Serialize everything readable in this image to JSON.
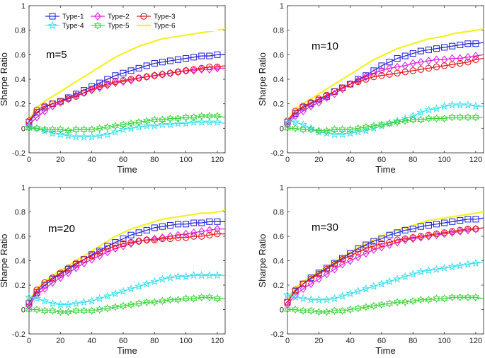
{
  "chart_data": [
    {
      "type": "line",
      "annotation": "m=5",
      "xlabel": "Time",
      "ylabel": "Sharpe Ratio",
      "xlim": [
        0,
        125
      ],
      "ylim": [
        -0.2,
        1
      ],
      "xticks": [
        "0",
        "20",
        "40",
        "60",
        "80",
        "100",
        "120"
      ],
      "yticks": [
        "-0.2",
        "0",
        "0.2",
        "0.4",
        "0.6",
        "0.8",
        "1"
      ],
      "x": [
        0,
        5,
        10,
        15,
        20,
        25,
        30,
        35,
        40,
        45,
        50,
        55,
        60,
        65,
        70,
        75,
        80,
        85,
        90,
        95,
        100,
        105,
        110,
        115,
        120,
        125
      ],
      "series": [
        {
          "name": "Type-1",
          "color": "#2b2bd6",
          "marker": "square",
          "values": [
            0.05,
            0.13,
            0.17,
            0.2,
            0.22,
            0.25,
            0.28,
            0.31,
            0.34,
            0.37,
            0.4,
            0.43,
            0.45,
            0.47,
            0.49,
            0.51,
            0.53,
            0.54,
            0.55,
            0.56,
            0.57,
            0.58,
            0.59,
            0.59,
            0.6,
            0.6
          ]
        },
        {
          "name": "Type-2",
          "color": "#e022e0",
          "marker": "diamond",
          "values": [
            0.03,
            0.09,
            0.14,
            0.18,
            0.21,
            0.24,
            0.27,
            0.29,
            0.31,
            0.33,
            0.35,
            0.37,
            0.38,
            0.39,
            0.41,
            0.42,
            0.43,
            0.44,
            0.45,
            0.46,
            0.47,
            0.47,
            0.48,
            0.48,
            0.49,
            0.49
          ]
        },
        {
          "name": "Type-3",
          "color": "#e01a1a",
          "marker": "circle",
          "values": [
            0.06,
            0.15,
            0.18,
            0.2,
            0.22,
            0.24,
            0.26,
            0.29,
            0.32,
            0.34,
            0.36,
            0.38,
            0.39,
            0.4,
            0.41,
            0.42,
            0.43,
            0.44,
            0.45,
            0.46,
            0.47,
            0.48,
            0.49,
            0.5,
            0.5,
            0.51
          ]
        },
        {
          "name": "Type-4",
          "color": "#3ae0ec",
          "marker": "star",
          "values": [
            0.01,
            0.0,
            -0.02,
            -0.04,
            -0.05,
            -0.06,
            -0.07,
            -0.07,
            -0.07,
            -0.06,
            -0.05,
            -0.03,
            -0.01,
            0.0,
            0.01,
            0.02,
            0.02,
            0.03,
            0.03,
            0.04,
            0.04,
            0.05,
            0.05,
            0.05,
            0.05,
            0.04
          ]
        },
        {
          "name": "Type-5",
          "color": "#3ed23e",
          "marker": "hexagram",
          "values": [
            0.0,
            0.0,
            -0.01,
            -0.01,
            -0.01,
            -0.02,
            -0.01,
            -0.01,
            -0.01,
            0.0,
            0.01,
            0.02,
            0.03,
            0.04,
            0.05,
            0.06,
            0.07,
            0.07,
            0.08,
            0.08,
            0.09,
            0.09,
            0.1,
            0.1,
            0.1,
            0.09
          ]
        },
        {
          "name": "Type-6",
          "color": "#f2f224",
          "marker": "none",
          "values": [
            0.07,
            0.17,
            0.22,
            0.26,
            0.3,
            0.34,
            0.38,
            0.42,
            0.46,
            0.5,
            0.54,
            0.58,
            0.61,
            0.64,
            0.67,
            0.69,
            0.71,
            0.73,
            0.74,
            0.75,
            0.76,
            0.77,
            0.78,
            0.79,
            0.8,
            0.81
          ]
        }
      ]
    },
    {
      "type": "line",
      "annotation": "m=10",
      "xlabel": "Time",
      "ylabel": "Sharpe Ratio",
      "xlim": [
        0,
        125
      ],
      "ylim": [
        -0.2,
        1
      ],
      "xticks": [
        "0",
        "20",
        "40",
        "60",
        "80",
        "100",
        "120"
      ],
      "yticks": [
        "-0.2",
        "0",
        "0.2",
        "0.4",
        "0.6",
        "0.8",
        "1"
      ],
      "x": [
        0,
        5,
        10,
        15,
        20,
        25,
        30,
        35,
        40,
        45,
        50,
        55,
        60,
        65,
        70,
        75,
        80,
        85,
        90,
        95,
        100,
        105,
        110,
        115,
        120,
        125
      ],
      "series": [
        {
          "name": "Type-1",
          "color": "#2b2bd6",
          "marker": "square",
          "values": [
            0.05,
            0.12,
            0.17,
            0.2,
            0.23,
            0.26,
            0.3,
            0.33,
            0.36,
            0.4,
            0.43,
            0.47,
            0.51,
            0.54,
            0.57,
            0.59,
            0.61,
            0.63,
            0.64,
            0.65,
            0.66,
            0.67,
            0.68,
            0.69,
            0.69,
            0.7
          ]
        },
        {
          "name": "Type-2",
          "color": "#e022e0",
          "marker": "diamond",
          "values": [
            0.03,
            0.1,
            0.14,
            0.18,
            0.21,
            0.25,
            0.28,
            0.32,
            0.36,
            0.39,
            0.42,
            0.45,
            0.47,
            0.49,
            0.5,
            0.51,
            0.53,
            0.54,
            0.55,
            0.56,
            0.56,
            0.57,
            0.57,
            0.58,
            0.59,
            0.6
          ]
        },
        {
          "name": "Type-3",
          "color": "#e01a1a",
          "marker": "circle",
          "values": [
            0.06,
            0.14,
            0.18,
            0.21,
            0.24,
            0.27,
            0.3,
            0.33,
            0.36,
            0.38,
            0.4,
            0.42,
            0.43,
            0.44,
            0.45,
            0.46,
            0.47,
            0.48,
            0.49,
            0.5,
            0.51,
            0.52,
            0.53,
            0.54,
            0.56,
            0.57
          ]
        },
        {
          "name": "Type-4",
          "color": "#3ae0ec",
          "marker": "star",
          "values": [
            0.06,
            0.05,
            0.03,
            0.0,
            -0.03,
            -0.04,
            -0.05,
            -0.05,
            -0.04,
            -0.03,
            -0.02,
            0.0,
            0.02,
            0.04,
            0.06,
            0.08,
            0.1,
            0.13,
            0.15,
            0.16,
            0.18,
            0.19,
            0.19,
            0.19,
            0.18,
            0.18
          ]
        },
        {
          "name": "Type-5",
          "color": "#3ed23e",
          "marker": "hexagram",
          "values": [
            0.0,
            0.0,
            -0.01,
            -0.01,
            -0.02,
            -0.02,
            -0.01,
            -0.01,
            -0.01,
            0.0,
            0.01,
            0.02,
            0.03,
            0.04,
            0.05,
            0.06,
            0.07,
            0.07,
            0.08,
            0.08,
            0.08,
            0.09,
            0.09,
            0.09,
            0.09,
            0.09
          ]
        },
        {
          "name": "Type-6",
          "color": "#f2f224",
          "marker": "none",
          "values": [
            0.06,
            0.16,
            0.2,
            0.24,
            0.28,
            0.32,
            0.36,
            0.4,
            0.44,
            0.48,
            0.52,
            0.56,
            0.59,
            0.62,
            0.65,
            0.67,
            0.69,
            0.71,
            0.73,
            0.74,
            0.75,
            0.77,
            0.78,
            0.79,
            0.8,
            0.81
          ]
        }
      ]
    },
    {
      "type": "line",
      "annotation": "m=20",
      "xlabel": "Time",
      "ylabel": "Sharpe Ratio",
      "xlim": [
        0,
        125
      ],
      "ylim": [
        -0.2,
        1
      ],
      "xticks": [
        "0",
        "20",
        "40",
        "60",
        "80",
        "100",
        "120"
      ],
      "yticks": [
        "-0.2",
        "0",
        "0.2",
        "0.4",
        "0.6",
        "0.8",
        "1"
      ],
      "x": [
        0,
        5,
        10,
        15,
        20,
        25,
        30,
        35,
        40,
        45,
        50,
        55,
        60,
        65,
        70,
        75,
        80,
        85,
        90,
        95,
        100,
        105,
        110,
        115,
        120,
        125
      ],
      "series": [
        {
          "name": "Type-1",
          "color": "#2b2bd6",
          "marker": "square",
          "values": [
            0.05,
            0.14,
            0.2,
            0.25,
            0.29,
            0.33,
            0.37,
            0.41,
            0.45,
            0.48,
            0.52,
            0.55,
            0.58,
            0.61,
            0.63,
            0.65,
            0.67,
            0.68,
            0.69,
            0.7,
            0.7,
            0.71,
            0.71,
            0.72,
            0.72,
            0.72
          ]
        },
        {
          "name": "Type-2",
          "color": "#e022e0",
          "marker": "diamond",
          "values": [
            0.03,
            0.12,
            0.17,
            0.22,
            0.26,
            0.3,
            0.34,
            0.38,
            0.41,
            0.44,
            0.47,
            0.5,
            0.52,
            0.54,
            0.56,
            0.57,
            0.58,
            0.59,
            0.6,
            0.61,
            0.62,
            0.63,
            0.64,
            0.65,
            0.66,
            0.66
          ]
        },
        {
          "name": "Type-3",
          "color": "#e01a1a",
          "marker": "circle",
          "values": [
            0.06,
            0.16,
            0.22,
            0.26,
            0.3,
            0.34,
            0.38,
            0.41,
            0.44,
            0.47,
            0.5,
            0.52,
            0.54,
            0.55,
            0.56,
            0.57,
            0.57,
            0.58,
            0.58,
            0.59,
            0.59,
            0.6,
            0.6,
            0.61,
            0.62,
            0.62
          ]
        },
        {
          "name": "Type-4",
          "color": "#3ae0ec",
          "marker": "star",
          "values": [
            0.1,
            0.09,
            0.07,
            0.05,
            0.04,
            0.04,
            0.05,
            0.06,
            0.07,
            0.09,
            0.11,
            0.13,
            0.15,
            0.17,
            0.19,
            0.21,
            0.23,
            0.25,
            0.26,
            0.27,
            0.27,
            0.28,
            0.28,
            0.28,
            0.28,
            0.28
          ]
        },
        {
          "name": "Type-5",
          "color": "#3ed23e",
          "marker": "hexagram",
          "values": [
            0.0,
            0.0,
            -0.01,
            -0.01,
            -0.02,
            -0.02,
            -0.01,
            -0.01,
            -0.01,
            0.0,
            0.01,
            0.02,
            0.03,
            0.04,
            0.05,
            0.06,
            0.06,
            0.07,
            0.08,
            0.08,
            0.09,
            0.09,
            0.1,
            0.1,
            0.09,
            0.09
          ]
        },
        {
          "name": "Type-6",
          "color": "#f2f224",
          "marker": "none",
          "values": [
            0.07,
            0.17,
            0.23,
            0.28,
            0.32,
            0.36,
            0.4,
            0.44,
            0.48,
            0.52,
            0.56,
            0.6,
            0.63,
            0.66,
            0.68,
            0.7,
            0.72,
            0.74,
            0.75,
            0.76,
            0.77,
            0.78,
            0.79,
            0.79,
            0.8,
            0.81
          ]
        }
      ]
    },
    {
      "type": "line",
      "annotation": "m=30",
      "xlabel": "Time",
      "ylabel": "Sharpe Ratio",
      "xlim": [
        0,
        125
      ],
      "ylim": [
        -0.2,
        1
      ],
      "xticks": [
        "0",
        "20",
        "40",
        "60",
        "80",
        "100",
        "120"
      ],
      "yticks": [
        "-0.2",
        "0",
        "0.2",
        "0.4",
        "0.6",
        "0.8",
        "1"
      ],
      "x": [
        0,
        5,
        10,
        15,
        20,
        25,
        30,
        35,
        40,
        45,
        50,
        55,
        60,
        65,
        70,
        75,
        80,
        85,
        90,
        95,
        100,
        105,
        110,
        115,
        120,
        125
      ],
      "series": [
        {
          "name": "Type-1",
          "color": "#2b2bd6",
          "marker": "square",
          "values": [
            0.06,
            0.15,
            0.21,
            0.26,
            0.3,
            0.34,
            0.38,
            0.42,
            0.46,
            0.5,
            0.53,
            0.56,
            0.58,
            0.61,
            0.63,
            0.65,
            0.66,
            0.68,
            0.69,
            0.7,
            0.71,
            0.72,
            0.73,
            0.74,
            0.74,
            0.75
          ]
        },
        {
          "name": "Type-2",
          "color": "#e022e0",
          "marker": "diamond",
          "values": [
            0.04,
            0.12,
            0.17,
            0.21,
            0.25,
            0.29,
            0.33,
            0.37,
            0.4,
            0.43,
            0.46,
            0.49,
            0.51,
            0.53,
            0.55,
            0.57,
            0.58,
            0.59,
            0.6,
            0.61,
            0.62,
            0.63,
            0.64,
            0.65,
            0.66,
            0.67
          ]
        },
        {
          "name": "Type-3",
          "color": "#e01a1a",
          "marker": "circle",
          "values": [
            0.06,
            0.16,
            0.21,
            0.25,
            0.29,
            0.33,
            0.37,
            0.41,
            0.44,
            0.47,
            0.5,
            0.52,
            0.54,
            0.55,
            0.57,
            0.58,
            0.59,
            0.6,
            0.61,
            0.62,
            0.63,
            0.64,
            0.65,
            0.66,
            0.66,
            0.67
          ]
        },
        {
          "name": "Type-4",
          "color": "#3ae0ec",
          "marker": "star",
          "values": [
            0.12,
            0.1,
            0.09,
            0.08,
            0.08,
            0.08,
            0.09,
            0.11,
            0.13,
            0.15,
            0.17,
            0.19,
            0.21,
            0.23,
            0.25,
            0.27,
            0.29,
            0.31,
            0.32,
            0.33,
            0.34,
            0.35,
            0.36,
            0.37,
            0.38,
            0.39
          ]
        },
        {
          "name": "Type-5",
          "color": "#3ed23e",
          "marker": "hexagram",
          "values": [
            0.0,
            0.0,
            -0.01,
            -0.01,
            -0.02,
            -0.02,
            -0.01,
            -0.01,
            0.0,
            0.01,
            0.02,
            0.03,
            0.04,
            0.05,
            0.06,
            0.06,
            0.07,
            0.08,
            0.08,
            0.09,
            0.09,
            0.1,
            0.1,
            0.1,
            0.1,
            0.09
          ]
        },
        {
          "name": "Type-6",
          "color": "#f2f224",
          "marker": "none",
          "values": [
            0.07,
            0.18,
            0.23,
            0.27,
            0.31,
            0.35,
            0.39,
            0.43,
            0.47,
            0.51,
            0.54,
            0.57,
            0.6,
            0.63,
            0.65,
            0.67,
            0.69,
            0.71,
            0.73,
            0.74,
            0.75,
            0.76,
            0.77,
            0.78,
            0.79,
            0.8
          ]
        }
      ]
    }
  ],
  "legend": {
    "location": "top-left of first panel",
    "entries": [
      "Type-1",
      "Type-2",
      "Type-3",
      "Type-4",
      "Type-5",
      "Type-6"
    ]
  }
}
